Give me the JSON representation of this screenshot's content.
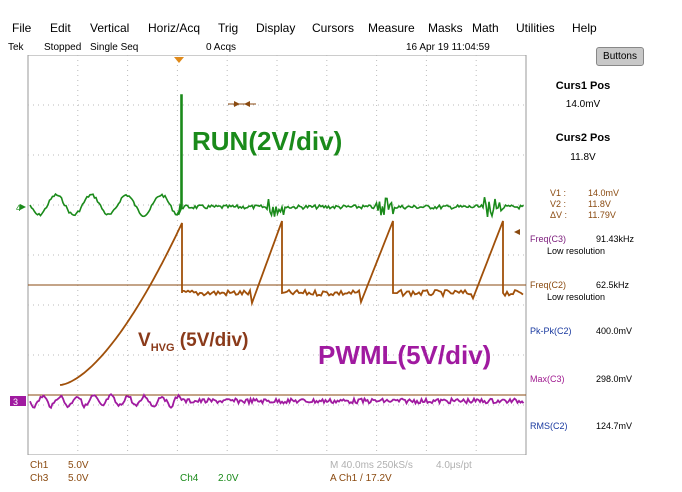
{
  "menu": [
    "File",
    "Edit",
    "Vertical",
    "Horiz/Acq",
    "Trig",
    "Display",
    "Cursors",
    "Measure",
    "Masks",
    "Math",
    "Utilities",
    "Help"
  ],
  "status": {
    "brand": "Tek",
    "state": "Stopped",
    "mode": "Single Seq",
    "acqs": "0 Acqs",
    "datetime": "16 Apr 19 11:04:59"
  },
  "buttons_label": "Buttons",
  "cursors": {
    "c1_title": "Curs1 Pos",
    "c1_value": "14.0mV",
    "c2_title": "Curs2 Pos",
    "c2_value": "11.8V"
  },
  "readouts": {
    "v1_label": "V1 :",
    "v1_value": "14.0mV",
    "v2_label": "V2 :",
    "v2_value": "11.8V",
    "dv_label": "ΔV :",
    "dv_value": "11.79V"
  },
  "measurements": [
    {
      "label": "Freq(C3)",
      "value": "91.43kHz",
      "sub": "Low resolution",
      "color": "#7a1a7a"
    },
    {
      "label": "Freq(C2)",
      "value": "62.5kHz",
      "sub": "Low resolution",
      "color": "#8a4a10"
    },
    {
      "label": "Pk-Pk(C2)",
      "value": "400.0mV",
      "sub": "",
      "color": "#1a3aa0"
    },
    {
      "label": "Max(C3)",
      "value": "298.0mV",
      "sub": "",
      "color": "#a01a90"
    },
    {
      "label": "RMS(C2)",
      "value": "124.7mV",
      "sub": "",
      "color": "#1a3aa0"
    }
  ],
  "labels": {
    "run": "RUN(2V/div)",
    "vhvg_main": "V",
    "vhvg_sub": "HVG",
    "vhvg_rest": " (5V/div)",
    "pwml": "PWML(5V/div)"
  },
  "channel_markers": {
    "ch4": "4",
    "ch3": "3"
  },
  "bottom": {
    "ch1_label": "Ch1",
    "ch1_value": "5.0V",
    "ch3_label": "Ch3",
    "ch3_value": "5.0V",
    "ch4_label": "Ch4",
    "ch4_value": "2.0V",
    "timebase": "M 40.0ms 250kS/s",
    "per_pt": "4.0μs/pt",
    "trigger": "A  Ch1  /  17.2V"
  },
  "colors": {
    "green": "#1a8a1a",
    "orange": "#a0500a",
    "purple": "#a01aa0",
    "grid": "#bbbbbb"
  }
}
